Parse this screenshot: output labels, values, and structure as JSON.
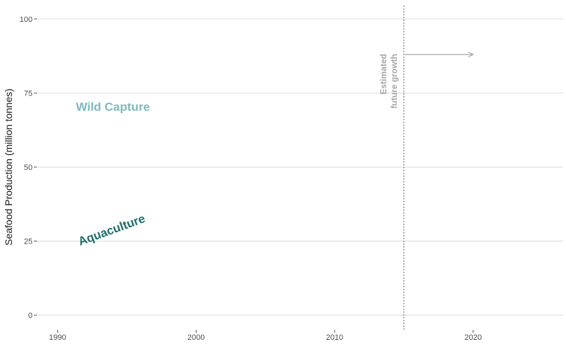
{
  "chart_data": {
    "type": "line",
    "title": "",
    "xlabel": "",
    "ylabel": "Seafood Production (million tonnes)",
    "xlim": [
      1988.5,
      2026.5
    ],
    "ylim": [
      -5,
      104.5
    ],
    "x_ticks": [
      1990,
      2000,
      2010,
      2020
    ],
    "y_ticks": [
      0,
      25,
      50,
      75,
      100
    ],
    "grid": "horizontal",
    "legend": "none",
    "series": [
      {
        "name": "Wild Capture",
        "color": "#7fb8bf",
        "x": [],
        "values": []
      },
      {
        "name": "Aquaculture",
        "color": "#1f6e6e",
        "x": [],
        "values": []
      }
    ],
    "series_labels": [
      {
        "text": "Wild Capture",
        "x": 1994,
        "y": 69,
        "angle": 0,
        "color": "#7fb8bf"
      },
      {
        "text": "Aquaculture",
        "x": 1994,
        "y": 27.5,
        "angle": -20,
        "color": "#1f6e6e"
      }
    ],
    "annotations": {
      "vline_x": 2015,
      "text_lines": [
        "Estimated",
        "future growth"
      ],
      "arrow": {
        "x_start": 2015,
        "x_end": 2020,
        "y": 88
      },
      "color": "#a6a6a6"
    }
  }
}
